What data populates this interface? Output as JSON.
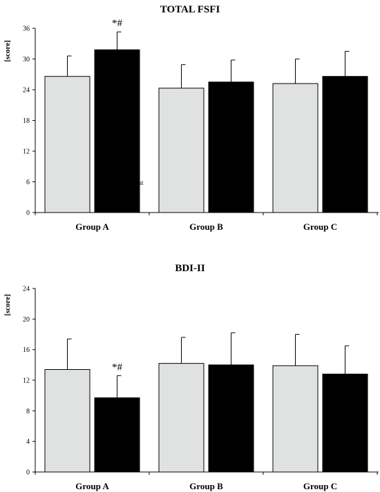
{
  "chart_data": [
    {
      "type": "bar",
      "title": "TOTAL FSFI",
      "ylabel": "[score]",
      "xlabel": "",
      "ylim": [
        0,
        36
      ],
      "yticks": [
        0,
        6,
        12,
        18,
        24,
        30,
        36
      ],
      "categories": [
        "Group A",
        "Group B",
        "Group C"
      ],
      "series": [
        {
          "values": [
            26.6,
            24.3,
            25.2
          ],
          "errors": [
            4.0,
            4.6,
            4.8
          ],
          "color": "#e0e2e2"
        },
        {
          "values": [
            31.8,
            25.5,
            26.6
          ],
          "errors": [
            3.5,
            4.3,
            4.9
          ],
          "color": "#000000"
        }
      ],
      "annotations": [
        {
          "category": "Group A",
          "series": 1,
          "text": "*#"
        }
      ],
      "stray_text": "st"
    },
    {
      "type": "bar",
      "title": "BDI-II",
      "ylabel": "[score]",
      "xlabel": "",
      "ylim": [
        0,
        24
      ],
      "yticks": [
        0,
        4,
        8,
        12,
        16,
        20,
        24
      ],
      "categories": [
        "Group A",
        "Group B",
        "Group C"
      ],
      "series": [
        {
          "values": [
            13.4,
            14.2,
            13.9
          ],
          "errors": [
            4.0,
            3.4,
            4.1
          ],
          "color": "#e0e2e2"
        },
        {
          "values": [
            9.7,
            14.0,
            12.8
          ],
          "errors": [
            2.9,
            4.2,
            3.7
          ],
          "color": "#000000"
        }
      ],
      "annotations": [
        {
          "category": "Group A",
          "series": 1,
          "text": "*#"
        }
      ]
    }
  ]
}
